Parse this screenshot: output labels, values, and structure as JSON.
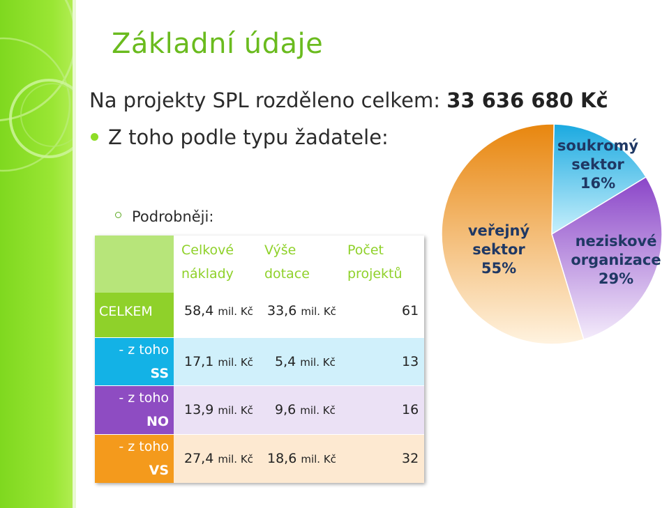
{
  "slide": {
    "title": "Základní údaje",
    "total_prefix": "Na projekty SPL rozděleno celkem: ",
    "total_value": "33 636 680 Kč",
    "subheading": "Z toho podle typu žadatele:",
    "detail_label": "Podrobněji:"
  },
  "table": {
    "headers": [
      "Celkové",
      "náklady",
      "Výše",
      "dotace",
      "Počet",
      "projektů"
    ],
    "unit": "mil. Kč",
    "rows": [
      {
        "label1": "CELKEM",
        "label2": "",
        "costs": "58,4",
        "subsidy": "33,6",
        "count": "61"
      },
      {
        "label1": "- z toho",
        "label2": "SS",
        "costs": "17,1",
        "subsidy": "5,4",
        "count": "13"
      },
      {
        "label1": "- z toho",
        "label2": "NO",
        "costs": "13,9",
        "subsidy": "9,6",
        "count": "16"
      },
      {
        "label1": "- z toho",
        "label2": "VS",
        "costs": "27,4",
        "subsidy": "18,6",
        "count": "32"
      }
    ],
    "colors": {
      "header": "#ffffff",
      "celkem_label": "#8fd12a",
      "celkem_row": "#ffffff",
      "ss_label": "#13b2e6",
      "ss_row": "#d0f0fb",
      "no_label": "#8e4cc2",
      "no_row": "#ebe1f5",
      "vs_label": "#f49a1c",
      "vs_row": "#fde9d1"
    }
  },
  "chart_data": {
    "type": "pie",
    "slices": [
      {
        "name": "veřejný sektor",
        "label_line1": "veřejný",
        "label_line2": "sektor",
        "value": 55,
        "pct_label": "55%",
        "color": "#f2971a"
      },
      {
        "name": "soukromý sektor",
        "label_line1": "soukromý",
        "label_line2": "sektor",
        "value": 16,
        "pct_label": "16%",
        "color": "#5ecff2"
      },
      {
        "name": "neziskové organizace",
        "label_line1": "neziskové",
        "label_line2": "organizace",
        "value": 29,
        "pct_label": "29%",
        "color": "#a66ad8"
      }
    ],
    "label_colors": {
      "veřejný sektor": "#1f3864",
      "soukromý sektor": "#1f3864",
      "neziskové organizace": "#1f3864"
    }
  }
}
